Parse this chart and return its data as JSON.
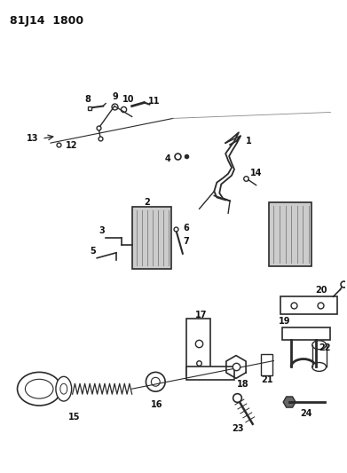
{
  "title": "81J14  1800",
  "background_color": "#ffffff",
  "line_color": "#2a2a2a",
  "text_color": "#111111",
  "fig_width": 3.91,
  "fig_height": 5.33,
  "dpi": 100
}
